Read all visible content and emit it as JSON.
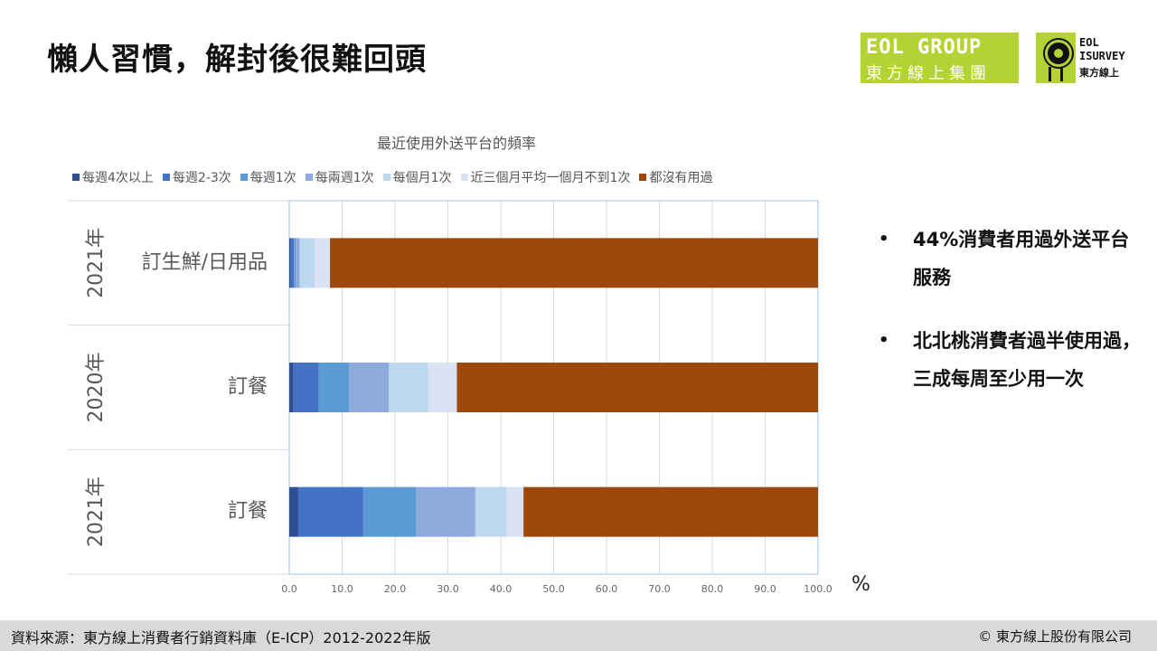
{
  "title": "懶人習慣，解封後很難回頭",
  "logos": {
    "eol_line1": "EOL GROUP",
    "eol_line2": "東方線上集團",
    "isurvey_line1": "EOL",
    "isurvey_line2": "ISURVEY",
    "isurvey_line3": "東方線上"
  },
  "colors": {
    "brand_green": "#b4d233",
    "footer_bg": "#d9d9d9"
  },
  "chart_data": {
    "type": "bar",
    "orientation": "horizontal",
    "stacked": true,
    "title": "最近使用外送平台的頻率",
    "categories": [
      {
        "group": "2021年",
        "label": "訂生鮮/日用品"
      },
      {
        "group": "2020年",
        "label": "訂餐"
      },
      {
        "group": "2021年",
        "label": "訂餐"
      }
    ],
    "series": [
      {
        "name": "每週4次以上",
        "color": "#2f4f8f",
        "values": [
          0.3,
          0.8,
          1.7
        ]
      },
      {
        "name": "每週2-3次",
        "color": "#4472c4",
        "values": [
          0.6,
          4.8,
          12.3
        ]
      },
      {
        "name": "每週1次",
        "color": "#5b9bd5",
        "values": [
          0.3,
          5.7,
          10.0
        ]
      },
      {
        "name": "每兩週1次",
        "color": "#8faadc",
        "values": [
          0.8,
          7.5,
          11.2
        ]
      },
      {
        "name": "每個月1次",
        "color": "#bdd7ee",
        "values": [
          2.8,
          7.5,
          5.9
        ]
      },
      {
        "name": "近三個月平均一個月不到1次",
        "color": "#dae3f3",
        "values": [
          2.9,
          5.4,
          3.2
        ]
      },
      {
        "name": "都沒有用過",
        "color": "#9e480e",
        "values": [
          92.3,
          68.3,
          55.7
        ]
      }
    ],
    "xlim": [
      0,
      100
    ],
    "xticks": [
      "0.0",
      "10.0",
      "20.0",
      "30.0",
      "40.0",
      "50.0",
      "60.0",
      "70.0",
      "80.0",
      "90.0",
      "100.0"
    ],
    "x_unit": "%",
    "legend_position": "top",
    "grid": true
  },
  "bullets": [
    "44%消費者用過外送平台服務",
    "北北桃消費者過半使用過，三成每周至少用一次"
  ],
  "bullet_symbol": "•",
  "footer": {
    "source": "資料來源：東方線上消費者行銷資料庫（E-ICP）2012-2022年版",
    "copyright": "© 東方線上股份有限公司"
  }
}
